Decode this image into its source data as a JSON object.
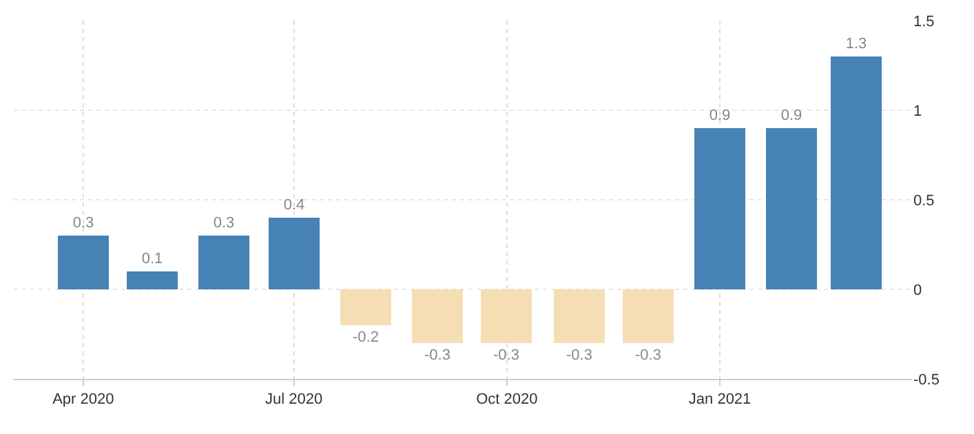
{
  "chart_data": {
    "type": "bar",
    "x": [
      "2020-04",
      "2020-05",
      "2020-06",
      "2020-07",
      "2020-08",
      "2020-09",
      "2020-10",
      "2020-11",
      "2020-12",
      "2021-01",
      "2021-02",
      "2021-03"
    ],
    "values": [
      0.3,
      0.1,
      0.3,
      0.4,
      -0.2,
      -0.3,
      -0.3,
      -0.3,
      -0.3,
      0.9,
      0.9,
      1.3
    ],
    "colors": [
      "#4682b4",
      "#4682b4",
      "#4682b4",
      "#4682b4",
      "#f5deb3",
      "#f5deb3",
      "#f5deb3",
      "#f5deb3",
      "#f5deb3",
      "#4682b4",
      "#4682b4",
      "#4682b4"
    ],
    "data_labels": true,
    "xlim": [
      "2020-03-02",
      "2021-03-25"
    ],
    "xticks": [
      {
        "value": "2020-04",
        "label": "Apr 2020"
      },
      {
        "value": "2020-07",
        "label": "Jul 2020"
      },
      {
        "value": "2020-10",
        "label": "Oct 2020"
      },
      {
        "value": "2021-01",
        "label": "Jan 2021"
      }
    ],
    "ylim": [
      -0.5,
      1.5
    ],
    "yticks": [
      {
        "value": -0.5,
        "label": "-0.5"
      },
      0,
      0.5,
      1,
      1.5
    ],
    "grid": true
  }
}
